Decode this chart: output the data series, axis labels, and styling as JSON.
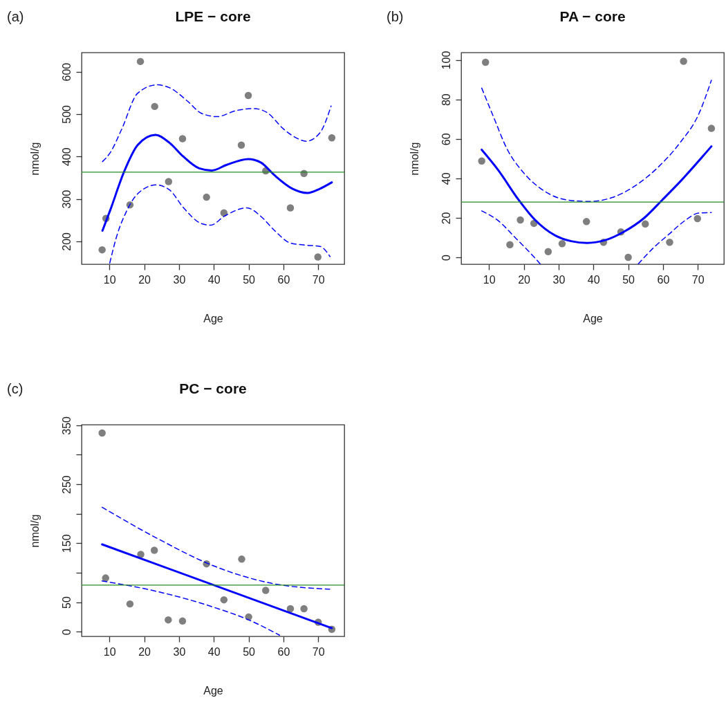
{
  "chart_data": [
    {
      "type": "scatter",
      "title": "LPE − core",
      "xlabel": "Age",
      "ylabel": "nmol/g",
      "annotations": [
        "(a)"
      ],
      "xlim": [
        2,
        77.5
      ],
      "xticks": [
        10,
        20,
        30,
        40,
        50,
        60,
        70
      ],
      "ylim": [
        146,
        645
      ],
      "yticks": [
        200,
        300,
        400,
        500,
        600
      ],
      "marker": "circle",
      "ref_lines": [
        {
          "axis": "y",
          "value": 363,
          "color": "#228b22"
        }
      ],
      "series": [
        {
          "color": "#7f7f7f",
          "x": [
            7.9,
            9,
            15.9,
            18.9,
            23,
            27,
            31,
            37.9,
            42.9,
            47.9,
            49.9,
            54.9,
            62,
            65.9,
            69.9,
            73.9
          ],
          "values": [
            180,
            254,
            286,
            624,
            518,
            341,
            442,
            304,
            267,
            427,
            544,
            366,
            279,
            360,
            163,
            444
          ]
        },
        {
          "type": "line",
          "marker": "none",
          "color": "#0000ff",
          "line_style": "solid",
          "x": [
            8,
            10.3,
            14.2,
            18.1,
            23.2,
            27.3,
            31.2,
            35.8,
            39.4,
            43.6,
            49.9,
            53.5,
            57.4,
            62.6,
            66.9,
            70.5,
            73.9
          ],
          "values": [
            225,
            275,
            364,
            427,
            451,
            432,
            400,
            372,
            367,
            380,
            394,
            386,
            356,
            324,
            314,
            324,
            339
          ]
        },
        {
          "type": "line",
          "marker": "none",
          "color": "#0000ff",
          "line_style": "dashed",
          "x": [
            8,
            10.3,
            13.5,
            18.1,
            23.7,
            27.3,
            32.5,
            36.4,
            41,
            46.3,
            51.5,
            55.4,
            60,
            63.9,
            66.5,
            70.5,
            73.7
          ],
          "values": [
            388,
            410,
            464,
            549,
            569,
            562,
            530,
            502,
            494,
            508,
            513,
            503,
            465,
            443,
            436,
            456,
            519
          ]
        },
        {
          "type": "line",
          "marker": "none",
          "color": "#0000ff",
          "line_style": "dashed",
          "x": [
            10.1,
            12.2,
            14.8,
            18.1,
            23.4,
            27.3,
            31.2,
            36.4,
            39.1,
            43,
            49.5,
            53.5,
            57.4,
            62,
            66.5,
            70.5,
            73.4
          ],
          "values": [
            149,
            215,
            269,
            312,
            333,
            321,
            280,
            242,
            238,
            259,
            279,
            259,
            226,
            196,
            191,
            188,
            164
          ]
        }
      ]
    },
    {
      "type": "scatter",
      "title": "PA − core",
      "xlabel": "Age",
      "ylabel": "nmol/g",
      "annotations": [
        "(b)"
      ],
      "xlim": [
        2,
        77.5
      ],
      "xticks": [
        10,
        20,
        30,
        40,
        50,
        60,
        70
      ],
      "ylim": [
        -3.5,
        103.7
      ],
      "yticks": [
        0,
        20,
        40,
        60,
        80,
        100
      ],
      "marker": "circle",
      "ref_lines": [
        {
          "axis": "y",
          "value": 28,
          "color": "#228b22"
        }
      ],
      "series": [
        {
          "color": "#7f7f7f",
          "x": [
            7.9,
            9,
            16,
            19,
            22.9,
            27,
            31,
            38,
            42.9,
            47.9,
            50,
            54.9,
            61.9,
            65.9,
            69.9,
            73.9
          ],
          "values": [
            48.8,
            98.8,
            6.4,
            18.9,
            17.2,
            2.9,
            6.9,
            18.1,
            7.6,
            12.9,
            0,
            16.9,
            7.6,
            99.3,
            19.6,
            65.3
          ]
        },
        {
          "type": "line",
          "marker": "none",
          "color": "#0000ff",
          "line_style": "solid",
          "x": [
            7.9,
            12.6,
            18.5,
            23.1,
            29,
            33.6,
            38.2,
            43.4,
            48.6,
            54.5,
            59.8,
            65,
            73.9
          ],
          "values": [
            54.5,
            44.3,
            29.1,
            19.2,
            11.1,
            8.2,
            7.3,
            8.7,
            12.8,
            19.8,
            29.1,
            38.5,
            56.2
          ]
        },
        {
          "type": "line",
          "marker": "none",
          "color": "#0000ff",
          "line_style": "dashed",
          "x": [
            7.9,
            11.3,
            15.2,
            19.8,
            25.7,
            32.3,
            38.8,
            45.4,
            51.9,
            58.5,
            65,
            70.2,
            73.9
          ],
          "values": [
            85.7,
            71.1,
            54.8,
            43.1,
            33.8,
            29.1,
            28.3,
            30.3,
            36.1,
            45.5,
            58.3,
            72.3,
            89.7
          ]
        },
        {
          "type": "line",
          "marker": "none",
          "color": "#0000ff",
          "line_style": "dashed",
          "x": [
            7.9,
            12.6,
            17.9,
            21.8,
            24.7,
            38,
            52.9,
            57.2,
            61.7,
            66.3,
            70.2,
            73.9
          ],
          "values": [
            23.5,
            18.6,
            9.3,
            2.3,
            -3.3,
            null,
            -3.3,
            4.7,
            11.7,
            18.6,
            22.4,
            22.7
          ]
        }
      ]
    },
    {
      "type": "scatter",
      "title": "PC − core",
      "xlabel": "Age",
      "ylabel": "nmol/g",
      "annotations": [
        "(c)"
      ],
      "xlim": [
        2,
        77.5
      ],
      "xticks": [
        10,
        20,
        30,
        40,
        50,
        60,
        70
      ],
      "ylim": [
        -8,
        351
      ],
      "yticks": [
        0,
        50,
        {
          "value": 100,
          "label": null
        },
        150,
        {
          "value": 200,
          "label": null
        },
        250,
        {
          "value": 300,
          "label": null
        },
        350
      ],
      "marker": "circle",
      "ref_lines": [
        {
          "axis": "y",
          "value": 79,
          "color": "#228b22"
        }
      ],
      "series": [
        {
          "color": "#7f7f7f",
          "x": [
            7.9,
            8.9,
            15.9,
            19,
            22.9,
            26.9,
            31,
            37.9,
            42.9,
            48,
            50,
            54.9,
            62,
            65.9,
            70,
            73.9
          ],
          "values": [
            337,
            91,
            47,
            131,
            138,
            20,
            18,
            115,
            54,
            123,
            25,
            70,
            39,
            39,
            16,
            4
          ]
        },
        {
          "type": "line",
          "marker": "none",
          "color": "#0000ff",
          "line_style": "solid",
          "x": [
            7.9,
            73.9
          ],
          "values": [
            148,
            6
          ]
        },
        {
          "type": "line",
          "marker": "none",
          "color": "#0000ff",
          "line_style": "dashed",
          "x": [
            7.9,
            23.8,
            40.2,
            56.6,
            73.3
          ],
          "values": [
            211,
            158,
            111,
            82,
            72
          ]
        },
        {
          "type": "line",
          "marker": "none",
          "color": "#0000ff",
          "line_style": "dashed",
          "x": [
            7.9,
            23.8,
            40.2,
            50,
            58.9
          ],
          "values": [
            86,
            68,
            41,
            20,
            -6
          ]
        }
      ]
    }
  ]
}
